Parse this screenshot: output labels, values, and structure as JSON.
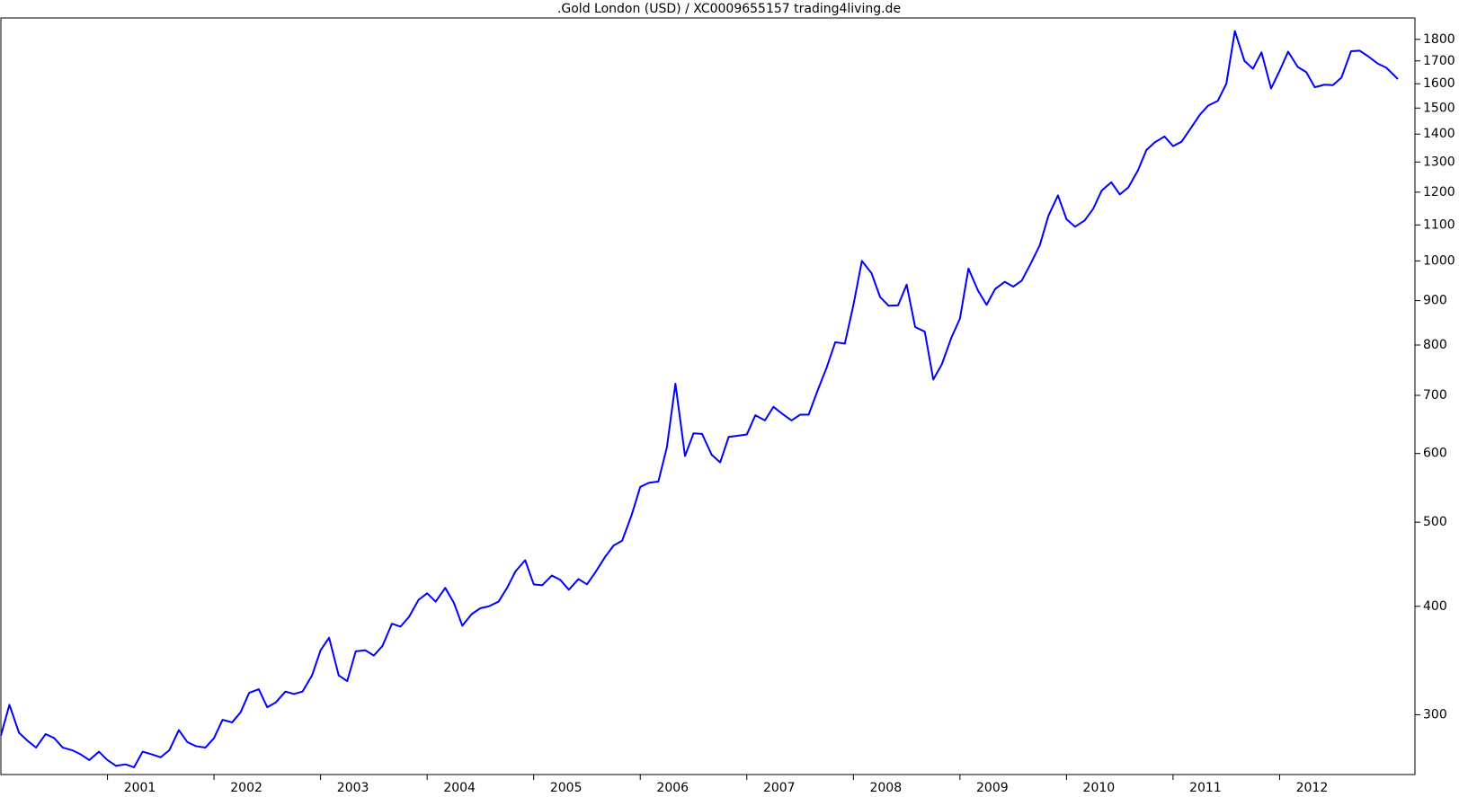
{
  "chart_data": {
    "type": "line",
    "title": ".Gold London (USD) / XC0009655157 trading4living.de",
    "log_scale_y": true,
    "xlim": [
      2000,
      2013.27
    ],
    "ylim": [
      256,
      1905
    ],
    "xticks": [
      2001,
      2002,
      2003,
      2004,
      2005,
      2006,
      2007,
      2008,
      2009,
      2010,
      2011,
      2012
    ],
    "yticks": [
      300,
      400,
      500,
      600,
      700,
      800,
      900,
      1000,
      1100,
      1200,
      1300,
      1400,
      1500,
      1600,
      1700,
      1800
    ],
    "series": [
      {
        "name": "Gold London (USD)",
        "color": "#0000ff",
        "x": [
          2000.0,
          2000.08,
          2000.17,
          2000.25,
          2000.33,
          2000.42,
          2000.5,
          2000.58,
          2000.67,
          2000.75,
          2000.83,
          2000.92,
          2001.0,
          2001.08,
          2001.17,
          2001.25,
          2001.33,
          2001.42,
          2001.5,
          2001.58,
          2001.67,
          2001.75,
          2001.83,
          2001.92,
          2002.0,
          2002.08,
          2002.17,
          2002.25,
          2002.33,
          2002.42,
          2002.5,
          2002.58,
          2002.67,
          2002.75,
          2002.83,
          2002.92,
          2003.0,
          2003.08,
          2003.17,
          2003.25,
          2003.33,
          2003.42,
          2003.5,
          2003.58,
          2003.67,
          2003.75,
          2003.83,
          2003.92,
          2004.0,
          2004.08,
          2004.17,
          2004.25,
          2004.33,
          2004.42,
          2004.5,
          2004.58,
          2004.67,
          2004.75,
          2004.83,
          2004.92,
          2005.0,
          2005.08,
          2005.17,
          2005.25,
          2005.33,
          2005.42,
          2005.5,
          2005.58,
          2005.67,
          2005.75,
          2005.83,
          2005.92,
          2006.0,
          2006.08,
          2006.17,
          2006.25,
          2006.33,
          2006.42,
          2006.5,
          2006.58,
          2006.67,
          2006.75,
          2006.83,
          2006.92,
          2007.0,
          2007.08,
          2007.17,
          2007.25,
          2007.33,
          2007.42,
          2007.5,
          2007.58,
          2007.67,
          2007.75,
          2007.83,
          2007.92,
          2008.0,
          2008.08,
          2008.17,
          2008.25,
          2008.33,
          2008.42,
          2008.5,
          2008.58,
          2008.67,
          2008.75,
          2008.83,
          2008.92,
          2009.0,
          2009.08,
          2009.17,
          2009.25,
          2009.33,
          2009.42,
          2009.5,
          2009.58,
          2009.67,
          2009.75,
          2009.83,
          2009.92,
          2010.0,
          2010.08,
          2010.17,
          2010.25,
          2010.33,
          2010.42,
          2010.5,
          2010.58,
          2010.67,
          2010.75,
          2010.83,
          2010.92,
          2011.0,
          2011.08,
          2011.17,
          2011.25,
          2011.33,
          2011.42,
          2011.5,
          2011.58,
          2011.67,
          2011.75,
          2011.83,
          2011.92,
          2012.0,
          2012.08,
          2012.17,
          2012.25,
          2012.33,
          2012.42,
          2012.5,
          2012.58,
          2012.67,
          2012.75,
          2012.83,
          2012.92,
          2013.0,
          2013.11
        ],
        "values": [
          284,
          308,
          286,
          280,
          275,
          285,
          282,
          275,
          273,
          270,
          266,
          272,
          266,
          262,
          263,
          261,
          272,
          270,
          268,
          273,
          288,
          279,
          276,
          275,
          282,
          296,
          294,
          302,
          318,
          321,
          306,
          310,
          319,
          317,
          319,
          333,
          356,
          368,
          333,
          328,
          355,
          356,
          351,
          360,
          382,
          379,
          389,
          407,
          414,
          405,
          420,
          404,
          380,
          392,
          398,
          400,
          405,
          420,
          439,
          452,
          424,
          423,
          434,
          429,
          418,
          430,
          424,
          438,
          456,
          470,
          476,
          510,
          549,
          555,
          557,
          610,
          722,
          596,
          633,
          632,
          598,
          586,
          627,
          629,
          631,
          664,
          655,
          679,
          667,
          655,
          665,
          665,
          712,
          754,
          806,
          803,
          889,
          1000,
          968,
          909,
          888,
          889,
          939,
          839,
          829,
          730,
          760,
          816,
          858,
          980,
          924,
          890,
          928,
          946,
          934,
          949,
          996,
          1043,
          1127,
          1190,
          1117,
          1095,
          1113,
          1148,
          1205,
          1232,
          1193,
          1215,
          1271,
          1342,
          1370,
          1391,
          1356,
          1372,
          1424,
          1473,
          1510,
          1529,
          1600,
          1840,
          1700,
          1665,
          1739,
          1580,
          1656,
          1742,
          1673,
          1650,
          1585,
          1596,
          1594,
          1626,
          1744,
          1747,
          1721,
          1688,
          1670,
          1620
        ]
      }
    ]
  }
}
